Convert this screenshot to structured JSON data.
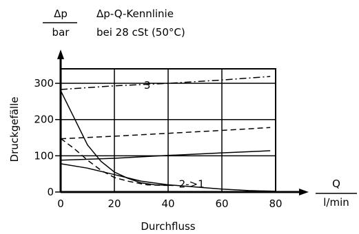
{
  "chart_data": {
    "type": "line",
    "title": "Δp-Q-Kennlinie",
    "subtitle": "bei 28 cSt (50°C)",
    "y_unit_numerator": "Δp",
    "y_unit_denominator": "bar",
    "x_unit_numerator": "Q",
    "x_unit_denominator": "l/min",
    "ylabel": "Druckgefälle",
    "xlabel": "Durchfluss",
    "xlim": [
      0,
      80
    ],
    "ylim": [
      0,
      340
    ],
    "x_ticks": [
      0,
      20,
      40,
      60,
      80
    ],
    "y_ticks": [
      0,
      100,
      200,
      300
    ],
    "grid": true,
    "annotations": [
      {
        "text": "3",
        "x": 31,
        "y": 285
      },
      {
        "text": "2->1",
        "x": 44,
        "y": 12
      }
    ],
    "series": [
      {
        "style": "dashdot",
        "values": [
          [
            0,
            283
          ],
          [
            20,
            293
          ],
          [
            40,
            300
          ],
          [
            60,
            309
          ],
          [
            78,
            319
          ]
        ]
      },
      {
        "style": "dashed",
        "values": [
          [
            0,
            147
          ],
          [
            20,
            154
          ],
          [
            40,
            162
          ],
          [
            60,
            170
          ],
          [
            78,
            178
          ]
        ]
      },
      {
        "style": "solid",
        "values": [
          [
            0,
            88
          ],
          [
            20,
            93
          ],
          [
            40,
            101
          ],
          [
            60,
            108
          ],
          [
            78,
            114
          ]
        ]
      },
      {
        "style": "solid",
        "values": [
          [
            0,
            280
          ],
          [
            5,
            205
          ],
          [
            10,
            130
          ],
          [
            15,
            85
          ],
          [
            20,
            55
          ],
          [
            25,
            38
          ],
          [
            30,
            25
          ],
          [
            35,
            20
          ],
          [
            42,
            18
          ]
        ]
      },
      {
        "style": "dashed",
        "values": [
          [
            0,
            148
          ],
          [
            5,
            120
          ],
          [
            10,
            88
          ],
          [
            15,
            60
          ],
          [
            20,
            40
          ],
          [
            25,
            30
          ],
          [
            32,
            20
          ],
          [
            40,
            18
          ]
        ]
      },
      {
        "style": "solid",
        "values": [
          [
            0,
            78
          ],
          [
            10,
            66
          ],
          [
            20,
            48
          ],
          [
            30,
            30
          ],
          [
            40,
            20
          ],
          [
            50,
            14
          ],
          [
            60,
            8
          ],
          [
            70,
            4
          ],
          [
            80,
            2
          ]
        ]
      }
    ]
  }
}
